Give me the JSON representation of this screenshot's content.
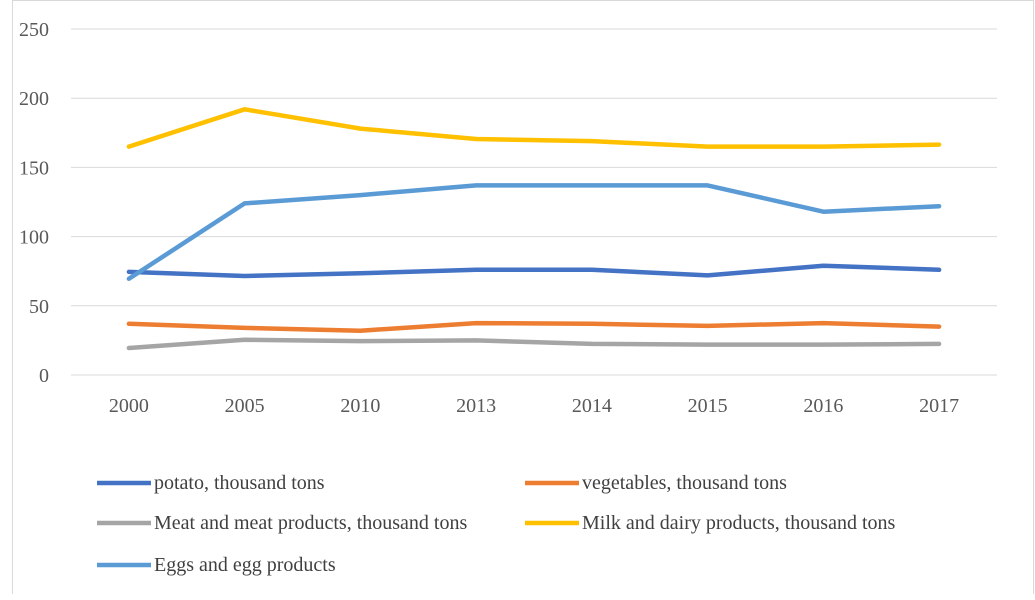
{
  "chart_data": {
    "type": "line",
    "categories": [
      "2000",
      "2005",
      "2010",
      "2013",
      "2014",
      "2015",
      "2016",
      "2017"
    ],
    "ylim": [
      0,
      250
    ],
    "yticks": [
      0,
      50,
      100,
      150,
      200,
      250
    ],
    "grid": true,
    "legend_position": "bottom",
    "series": [
      {
        "name": "potato, thousand tons",
        "color": "#4472C4",
        "values": [
          74.5,
          71.5,
          73.5,
          76,
          76,
          72,
          79,
          76
        ]
      },
      {
        "name": "vegetables, thousand tons",
        "color": "#ED7D31",
        "values": [
          37,
          34,
          32,
          37.5,
          37,
          35.5,
          37.5,
          35
        ]
      },
      {
        "name": "Meat and meat products, thousand tons",
        "color": "#A5A5A5",
        "values": [
          19.5,
          25.5,
          24.5,
          25,
          22.5,
          22,
          22,
          22.5
        ]
      },
      {
        "name": "Milk and dairy products, thousand tons",
        "color": "#FFC000",
        "values": [
          165,
          192,
          178,
          170.5,
          169,
          165,
          165,
          166.5
        ]
      },
      {
        "name": "Eggs and egg products",
        "color": "#5B9BD5",
        "values": [
          69.5,
          124,
          130,
          137,
          137,
          137,
          118,
          122
        ]
      }
    ]
  }
}
